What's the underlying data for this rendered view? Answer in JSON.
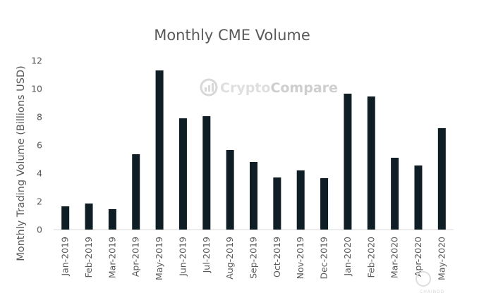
{
  "chart_data": {
    "type": "bar",
    "title": "Monthly CME Volume",
    "xlabel": "",
    "ylabel": "Monthly Trading Volume (Billions USD)",
    "ylim": [
      0,
      12
    ],
    "yticks": [
      0,
      2,
      4,
      6,
      8,
      10,
      12
    ],
    "grid": false,
    "legend": "none",
    "categories": [
      "Jan-2019",
      "Feb-2019",
      "Mar-2019",
      "Apr-2019",
      "May-2019",
      "Jun-2019",
      "Jul-2019",
      "Aug-2019",
      "Sep-2019",
      "Oct-2019",
      "Nov-2019",
      "Dec-2019",
      "Jan-2020",
      "Feb-2020",
      "Mar-2020",
      "Apr-2020",
      "May-2020"
    ],
    "values": [
      1.65,
      1.85,
      1.45,
      5.35,
      11.3,
      7.9,
      8.05,
      5.65,
      4.8,
      3.7,
      4.2,
      3.65,
      9.65,
      9.45,
      5.1,
      4.55,
      7.2
    ],
    "bar_color": "#0f1d24",
    "text_color": "#595959"
  },
  "watermark": {
    "brand_light": "Crypto",
    "brand_bold": "Compare",
    "color_light": "#dcdcdc",
    "color_bold": "#c9c9c9"
  },
  "corner_logo": {
    "text": "CHAINDD"
  }
}
